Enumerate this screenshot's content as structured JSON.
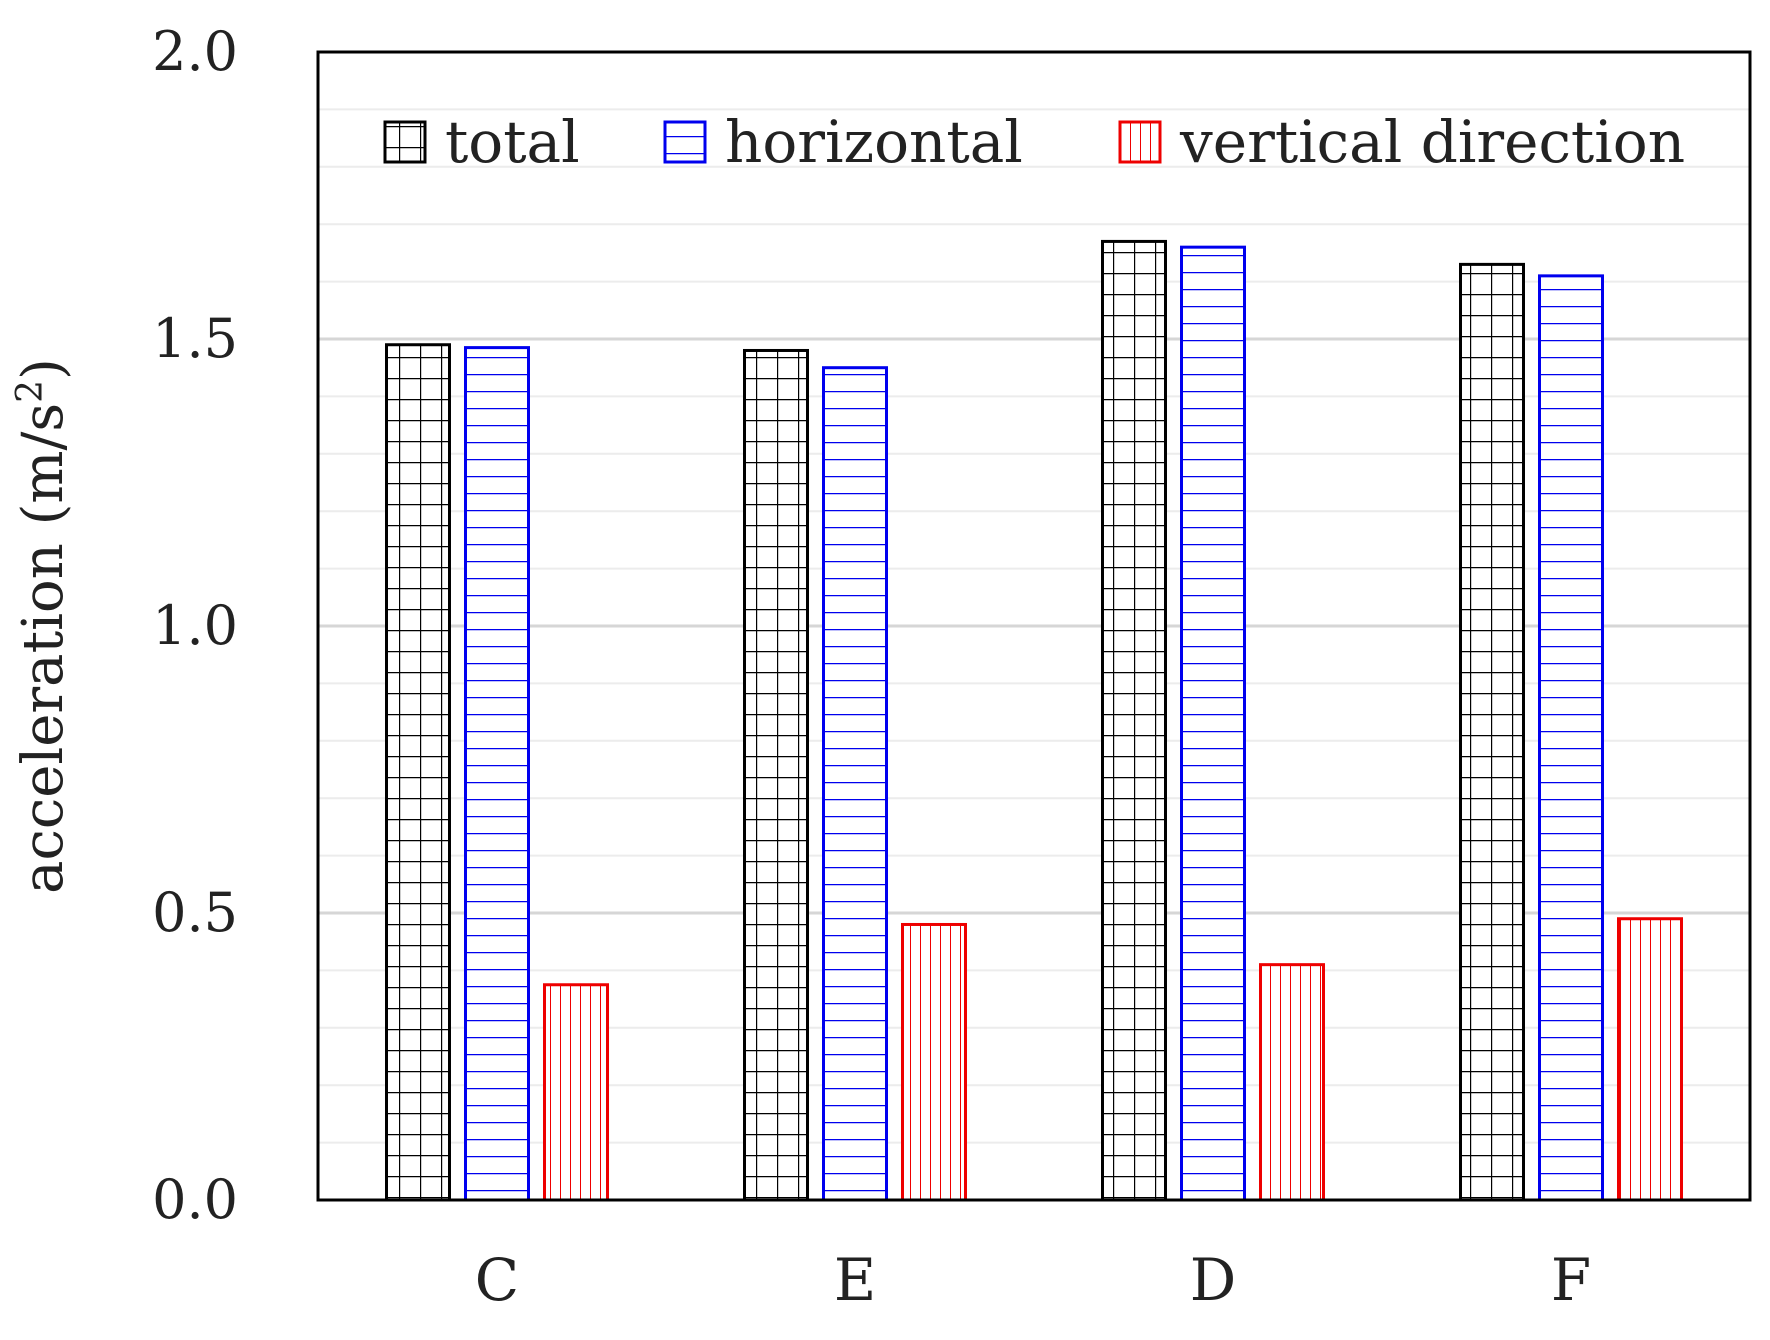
{
  "chart_data": {
    "type": "bar",
    "title": "",
    "xlabel": "",
    "ylabel": "acceleration (m/s",
    "ylabel_sup": "2",
    "ylabel_close": ")",
    "ylim": [
      0,
      2.0
    ],
    "y_ticks": [
      "0.0",
      "0.5",
      "1.0",
      "1.5",
      "2.0"
    ],
    "y_tick_values": [
      0,
      0.5,
      1.0,
      1.5,
      2.0
    ],
    "minor_step": 0.1,
    "grid": true,
    "legend_position": "top",
    "categories": [
      "C",
      "E",
      "D",
      "F"
    ],
    "series": [
      {
        "name": "total",
        "color": "#000000",
        "pattern": "grid",
        "values": [
          1.49,
          1.48,
          1.67,
          1.63
        ]
      },
      {
        "name": "horizontal",
        "color": "#0000ee",
        "pattern": "horizontal",
        "values": [
          1.485,
          1.45,
          1.66,
          1.61
        ]
      },
      {
        "name": "vertical direction",
        "color": "#ee0000",
        "pattern": "vertical",
        "values": [
          0.375,
          0.48,
          0.41,
          0.49
        ]
      }
    ]
  }
}
